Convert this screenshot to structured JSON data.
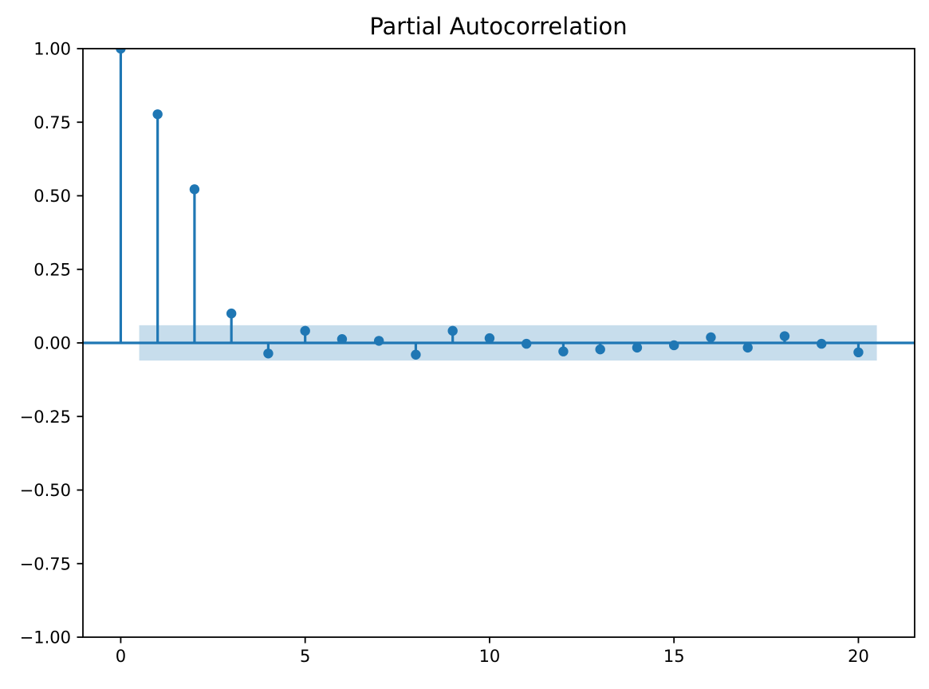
{
  "figure": {
    "title": "Partial Autocorrelation"
  },
  "chart_data": {
    "type": "stem",
    "title": "Partial Autocorrelation",
    "xlabel": "",
    "ylabel": "",
    "x": [
      0,
      1,
      2,
      3,
      4,
      5,
      6,
      7,
      8,
      9,
      10,
      11,
      12,
      13,
      14,
      15,
      16,
      17,
      18,
      19,
      20
    ],
    "values": [
      1.0,
      0.777,
      0.522,
      0.1,
      -0.036,
      0.041,
      0.013,
      0.007,
      -0.04,
      0.041,
      0.016,
      -0.003,
      -0.029,
      -0.022,
      -0.016,
      -0.008,
      0.019,
      -0.016,
      0.023,
      -0.003,
      -0.032
    ],
    "confidence_band": {
      "x_start": 0.5,
      "x_end": 20.5,
      "low": -0.06,
      "high": 0.06
    },
    "xlim": [
      -1.025,
      21.525
    ],
    "ylim": [
      -1.0,
      1.0
    ],
    "xticks": {
      "values": [
        0,
        5,
        10,
        15,
        20
      ],
      "labels": [
        "0",
        "5",
        "10",
        "15",
        "20"
      ]
    },
    "yticks": {
      "values": [
        1.0,
        0.75,
        0.5,
        0.25,
        0.0,
        -0.25,
        -0.5,
        -0.75,
        -1.0
      ],
      "labels": [
        "1.00",
        "0.75",
        "0.50",
        "0.25",
        "0.00",
        "−0.25",
        "−0.50",
        "−0.75",
        "−1.00"
      ]
    },
    "grid": false,
    "legend": null,
    "colors": {
      "stem": "#1f77b4",
      "marker": "#1f77b4",
      "zero_line": "#1f77b4",
      "band": "#1f77b4",
      "band_opacity": 0.25,
      "axis": "#000000",
      "background": "#ffffff"
    }
  }
}
